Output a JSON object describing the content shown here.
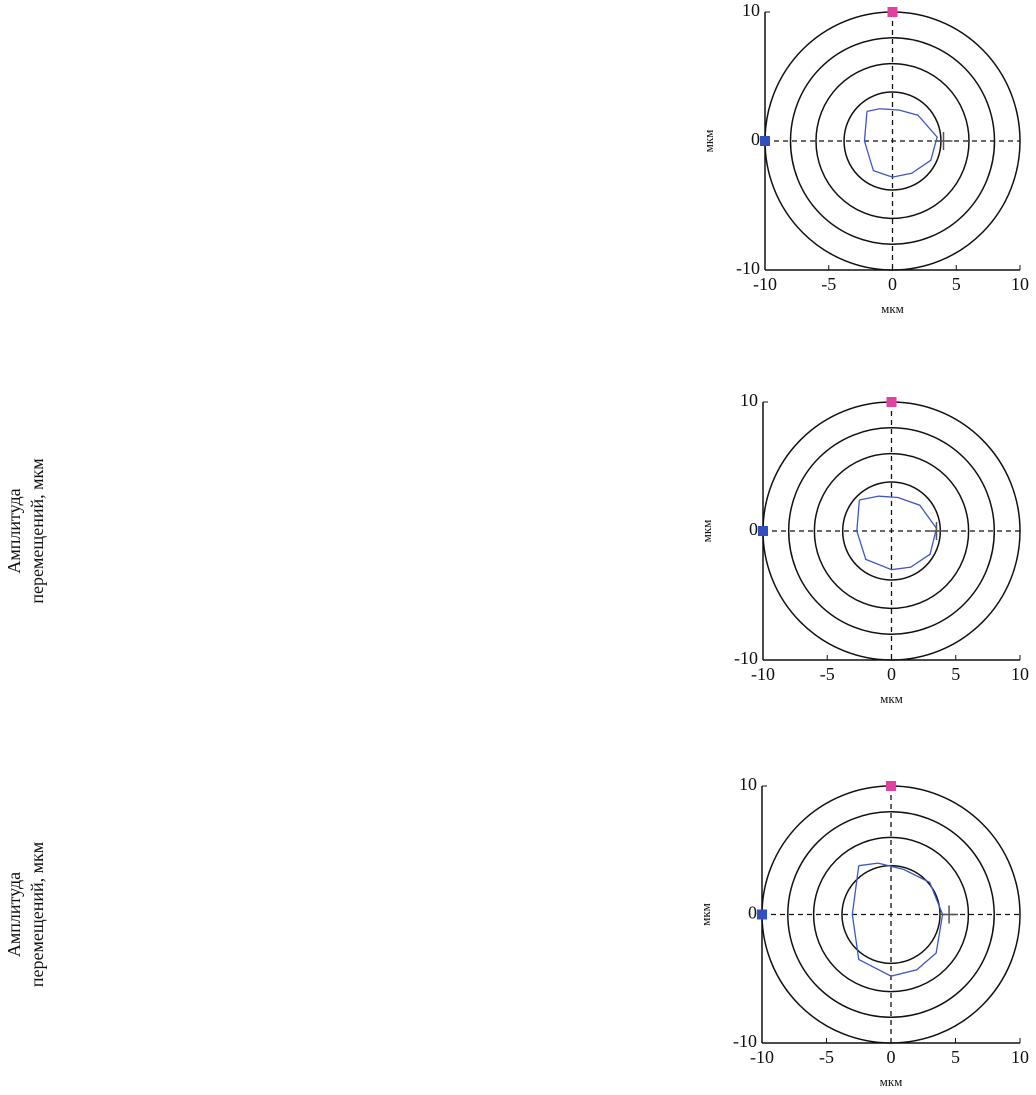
{
  "chart_data": [
    {
      "type": "orbit",
      "xlabel": "мкм",
      "ylabel": "мкм",
      "xlim": [
        -10,
        10
      ],
      "ylim": [
        -10,
        10
      ],
      "xticks": [
        -10,
        -5,
        0,
        5,
        10
      ],
      "yticks": [
        -10,
        0,
        10
      ],
      "rings": [
        3.8,
        6,
        8,
        10
      ],
      "series": [
        {
          "color": "#4057c0",
          "x": [
            -2,
            -1,
            0.5,
            2,
            3.5,
            3,
            1.5,
            0,
            -1.5,
            -2.2,
            -2
          ],
          "y": [
            2.3,
            2.5,
            2.4,
            2,
            0.3,
            -1.5,
            -2.5,
            -2.8,
            -2.3,
            0,
            2.3
          ]
        }
      ],
      "markers": {
        "x": [
          0,
          -10
        ],
        "y": [
          10,
          0
        ],
        "colors": [
          "#e040a0",
          "#3050c0"
        ]
      },
      "cross": {
        "x": 4,
        "y": 0
      }
    },
    {
      "type": "orbit",
      "xlabel": "мкм",
      "ylabel": "мкм",
      "side_label": [
        "Амплитуда",
        "перемещений, мкм"
      ],
      "xlim": [
        -10,
        10
      ],
      "ylim": [
        -10,
        10
      ],
      "xticks": [
        -10,
        -5,
        0,
        5,
        10
      ],
      "yticks": [
        -10,
        0,
        10
      ],
      "rings": [
        3.8,
        6,
        8,
        10
      ],
      "series": [
        {
          "color": "#4057c0",
          "x": [
            -2.5,
            -1,
            0.5,
            2.2,
            3.5,
            3,
            1.5,
            0,
            -2,
            -2.7,
            -2.5
          ],
          "y": [
            2.4,
            2.7,
            2.6,
            2,
            0.2,
            -1.8,
            -2.8,
            -3,
            -2.2,
            0,
            2.4
          ]
        }
      ],
      "markers": {
        "x": [
          0,
          -10
        ],
        "y": [
          10,
          0
        ],
        "colors": [
          "#e040a0",
          "#3050c0"
        ]
      },
      "cross": {
        "x": 3.5,
        "y": 0
      }
    },
    {
      "type": "orbit",
      "xlabel": "мкм",
      "ylabel": "мкм",
      "side_label": [
        "Амплитуда",
        "перемещений, мкм"
      ],
      "xlim": [
        -10,
        10
      ],
      "ylim": [
        -10,
        10
      ],
      "xticks": [
        -10,
        -5,
        0,
        5,
        10
      ],
      "yticks": [
        -10,
        0,
        10
      ],
      "rings": [
        3.8,
        6,
        8,
        10
      ],
      "series": [
        {
          "color": "#4057c0",
          "x": [
            -2.5,
            -1,
            1,
            3,
            4,
            3.5,
            2,
            0,
            -2.5,
            -3,
            -2.5
          ],
          "y": [
            3.8,
            4,
            3.5,
            2.5,
            0,
            -3,
            -4.3,
            -4.8,
            -3.5,
            0,
            3.8
          ]
        }
      ],
      "markers": {
        "x": [
          0,
          -10
        ],
        "y": [
          10,
          0
        ],
        "colors": [
          "#e040a0",
          "#3050c0"
        ]
      },
      "cross": {
        "x": 4.5,
        "y": 0
      }
    }
  ]
}
